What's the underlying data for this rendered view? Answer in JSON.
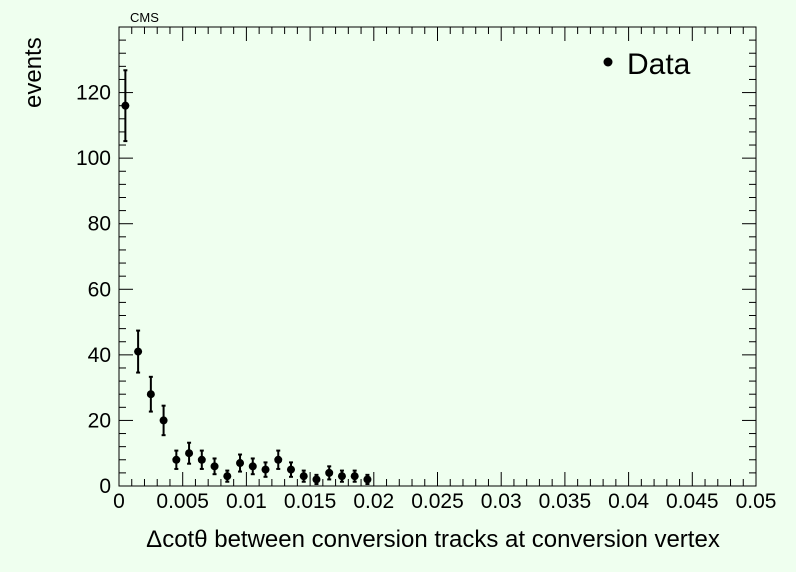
{
  "chart_data": {
    "type": "scatter",
    "note": "CMS",
    "xlabel": "Δcotθ between conversion tracks at conversion vertex",
    "ylabel": "events",
    "xlim": [
      0,
      0.05
    ],
    "ylim": [
      0,
      140
    ],
    "x_ticks": [
      "0",
      "0.005",
      "0.01",
      "0.015",
      "0.02",
      "0.025",
      "0.03",
      "0.035",
      "0.04",
      "0.045",
      "0.05"
    ],
    "x_tick_values": [
      0,
      0.005,
      0.01,
      0.015,
      0.02,
      0.025,
      0.03,
      0.035,
      0.04,
      0.045,
      0.05
    ],
    "y_ticks": [
      "0",
      "20",
      "40",
      "60",
      "80",
      "100",
      "120"
    ],
    "y_tick_values": [
      0,
      20,
      40,
      60,
      80,
      100,
      120
    ],
    "legend_position": "top-right",
    "grid": false,
    "series": [
      {
        "name": "Data",
        "color": "#000000",
        "marker": "circle",
        "x": [
          0.0005,
          0.0015,
          0.0025,
          0.0035,
          0.0045,
          0.0055,
          0.0065,
          0.0075,
          0.0085,
          0.0095,
          0.0105,
          0.0115,
          0.0125,
          0.0135,
          0.0145,
          0.0155,
          0.0165,
          0.0175,
          0.0185,
          0.0195
        ],
        "y": [
          116,
          41,
          28,
          20,
          8,
          10,
          8,
          6,
          3,
          7,
          6,
          5,
          8,
          5,
          3,
          2,
          4,
          3,
          3,
          2
        ],
        "yerr": [
          10.8,
          6.4,
          5.3,
          4.5,
          2.8,
          3.2,
          2.8,
          2.4,
          1.7,
          2.6,
          2.4,
          2.2,
          2.8,
          2.2,
          1.7,
          1.4,
          2.0,
          1.7,
          1.7,
          1.4
        ]
      }
    ]
  }
}
